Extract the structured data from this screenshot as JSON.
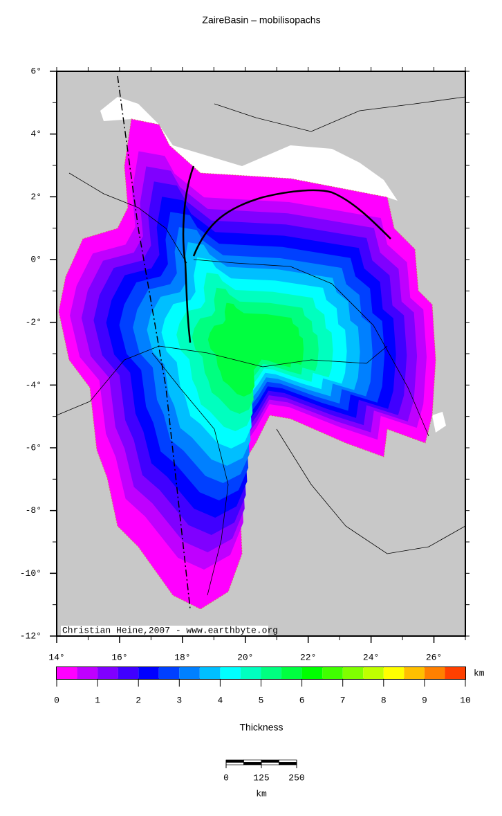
{
  "title": "ZaireBasin – mobilisopachs",
  "map": {
    "lonlim": [
      14,
      27
    ],
    "latlim": [
      -12,
      6
    ],
    "lonticks": [
      {
        "value": 14,
        "label": "14°"
      },
      {
        "value": 16,
        "label": "16°"
      },
      {
        "value": 18,
        "label": "18°"
      },
      {
        "value": 20,
        "label": "20°"
      },
      {
        "value": 22,
        "label": "22°"
      },
      {
        "value": 24,
        "label": "24°"
      },
      {
        "value": 26,
        "label": "26°"
      }
    ],
    "latticks": [
      {
        "value": 6,
        "label": "6°"
      },
      {
        "value": 4,
        "label": "4°"
      },
      {
        "value": 2,
        "label": "2°"
      },
      {
        "value": 0,
        "label": "0°"
      },
      {
        "value": -2,
        "label": "-2°"
      },
      {
        "value": -4,
        "label": "-4°"
      },
      {
        "value": -6,
        "label": "-6°"
      },
      {
        "value": -8,
        "label": "-8°"
      },
      {
        "value": -10,
        "label": "-10°"
      },
      {
        "value": -12,
        "label": "-12°"
      }
    ],
    "credit": "Christian Heine,2007 - www.earthbyte.org"
  },
  "colorbar": {
    "label": "Thickness",
    "unit": "km",
    "range": [
      0,
      10
    ],
    "ticks": [
      0,
      1,
      2,
      3,
      4,
      5,
      6,
      7,
      8,
      9,
      10
    ],
    "colors": [
      "#ff00ff",
      "#bf00ff",
      "#8000ff",
      "#4000ff",
      "#0000ff",
      "#0040ff",
      "#0080ff",
      "#00bfff",
      "#00ffff",
      "#00ffbf",
      "#00ff80",
      "#00ff40",
      "#00ff00",
      "#40ff00",
      "#80ff00",
      "#bfff00",
      "#ffff00",
      "#ffbf00",
      "#ff8000",
      "#ff4000"
    ]
  },
  "scalebar": {
    "ticks": [
      0,
      125,
      250
    ],
    "unit": "km"
  }
}
